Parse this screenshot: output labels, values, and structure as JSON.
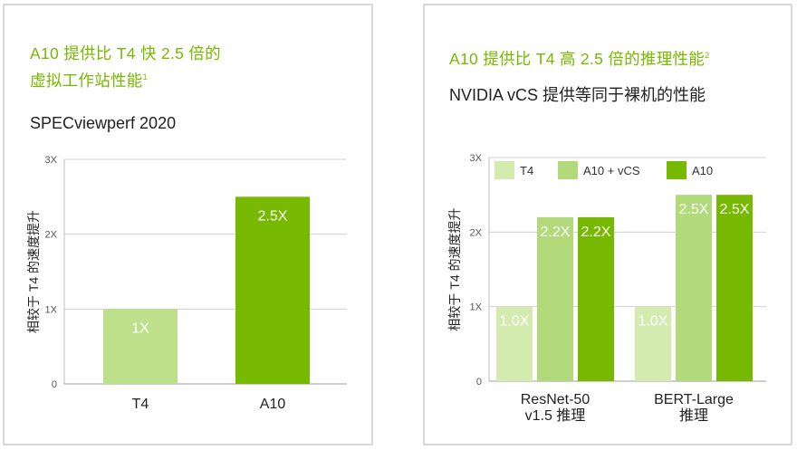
{
  "left": {
    "heading_line1": "A10 提供比 T4 快 2.5 倍的",
    "heading_line2": "虚拟工作站性能",
    "heading_sup": "1",
    "subtitle": "SPECviewperf 2020"
  },
  "right": {
    "heading": "A10 提供比 T4 高 2.5 倍的推理性能",
    "heading_sup": "2",
    "subtitle": "NVIDIA vCS 提供等同于裸机的性能"
  },
  "chart_data": [
    {
      "type": "bar",
      "ylabel": "相较于 T4 的速度提升",
      "ylim": [
        0,
        3
      ],
      "yticks": [
        "0",
        "1X",
        "2X",
        "3X"
      ],
      "categories": [
        "T4",
        "A10"
      ],
      "values": [
        1,
        2.5
      ],
      "data_labels": [
        "1X",
        "2.5X"
      ],
      "colors": [
        "#bfe08a",
        "#76b900"
      ],
      "grid": true
    },
    {
      "type": "bar",
      "ylabel": "相较于 T4 的速度提升",
      "ylim": [
        0,
        3
      ],
      "yticks": [
        "0",
        "1X",
        "2X",
        "3X"
      ],
      "categories": [
        [
          "ResNet-50",
          "v1.5 推理"
        ],
        [
          "BERT-Large",
          "推理"
        ]
      ],
      "series": [
        {
          "name": "T4",
          "values": [
            1.0,
            1.0
          ],
          "data_labels": [
            "1.0X",
            "1.0X"
          ],
          "color": "#d4ebb0"
        },
        {
          "name": "A10 + vCS",
          "values": [
            2.2,
            2.5
          ],
          "data_labels": [
            "2.2X",
            "2.5X"
          ],
          "color": "#b2d97a"
        },
        {
          "name": "A10",
          "values": [
            2.2,
            2.5
          ],
          "data_labels": [
            "2.2X",
            "2.5X"
          ],
          "color": "#76b900"
        }
      ],
      "legend": "top",
      "grid": true
    }
  ]
}
